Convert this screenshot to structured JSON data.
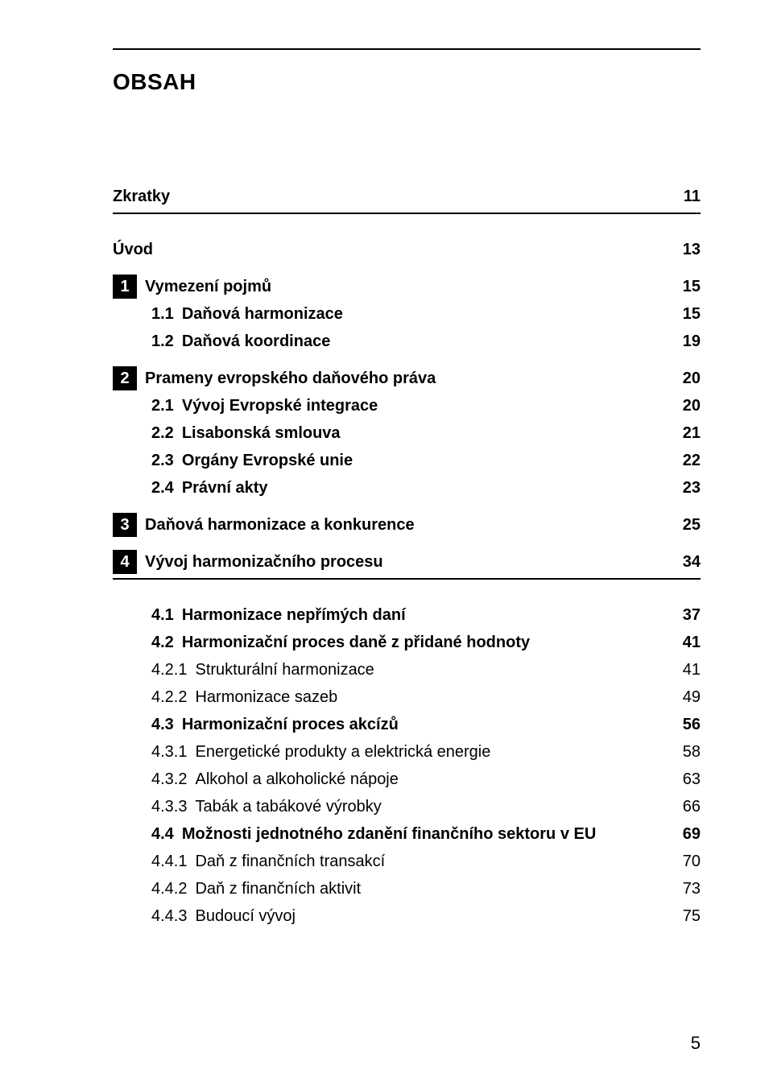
{
  "title": "OBSAH",
  "footer_page": "5",
  "items": [
    {
      "kind": "plain-top",
      "label": "Zkratky",
      "page": "11",
      "underlined": true
    },
    {
      "kind": "plain-top",
      "label": "Úvod",
      "page": "13"
    },
    {
      "kind": "chapter",
      "chapnum": "1",
      "label": "Vymezení pojmů",
      "page": "15"
    },
    {
      "kind": "section",
      "num": "1.1",
      "label": "Daňová harmonizace",
      "page": "15"
    },
    {
      "kind": "section",
      "num": "1.2",
      "label": "Daňová koordinace",
      "page": "19"
    },
    {
      "kind": "chapter",
      "chapnum": "2",
      "label": "Prameny evropského daňového práva",
      "page": "20"
    },
    {
      "kind": "section",
      "num": "2.1",
      "label": "Vývoj Evropské integrace",
      "page": "20"
    },
    {
      "kind": "section",
      "num": "2.2",
      "label": "Lisabonská smlouva",
      "page": "21"
    },
    {
      "kind": "section",
      "num": "2.3",
      "label": "Orgány Evropské unie",
      "page": "22"
    },
    {
      "kind": "section",
      "num": "2.4",
      "label": "Právní akty",
      "page": "23"
    },
    {
      "kind": "chapter",
      "chapnum": "3",
      "label": "Daňová harmonizace a konkurence",
      "page": "25"
    },
    {
      "kind": "chapter",
      "chapnum": "4",
      "label": "Vývoj harmonizačního procesu",
      "page": "34",
      "underlined": true
    },
    {
      "kind": "section",
      "num": "4.1",
      "label": "Harmonizace nepřímých daní",
      "page": "37"
    },
    {
      "kind": "section",
      "num": "4.2",
      "label": "Harmonizační proces daně z přidané hodnoty",
      "page": "41"
    },
    {
      "kind": "subsection",
      "num": "4.2.1",
      "label": "Strukturální harmonizace",
      "page": "41"
    },
    {
      "kind": "subsection",
      "num": "4.2.2",
      "label": "Harmonizace sazeb",
      "page": "49"
    },
    {
      "kind": "section",
      "num": "4.3",
      "label": "Harmonizační proces akcízů",
      "page": "56"
    },
    {
      "kind": "subsection",
      "num": "4.3.1",
      "label": "Energetické produkty a elektrická energie",
      "page": "58"
    },
    {
      "kind": "subsection",
      "num": "4.3.2",
      "label": "Alkohol a alkoholické nápoje",
      "page": "63"
    },
    {
      "kind": "subsection",
      "num": "4.3.3",
      "label": "Tabák a tabákové výrobky",
      "page": "66"
    },
    {
      "kind": "section",
      "num": "4.4",
      "label": "Možnosti jednotného zdanění finančního sektoru v EU",
      "page": "69"
    },
    {
      "kind": "subsection",
      "num": "4.4.1",
      "label": "Daň z finančních transakcí",
      "page": "70"
    },
    {
      "kind": "subsection",
      "num": "4.4.2",
      "label": "Daň z finančních aktivit",
      "page": "73"
    },
    {
      "kind": "subsection",
      "num": "4.4.3",
      "label": "Budoucí vývoj",
      "page": "75"
    }
  ]
}
